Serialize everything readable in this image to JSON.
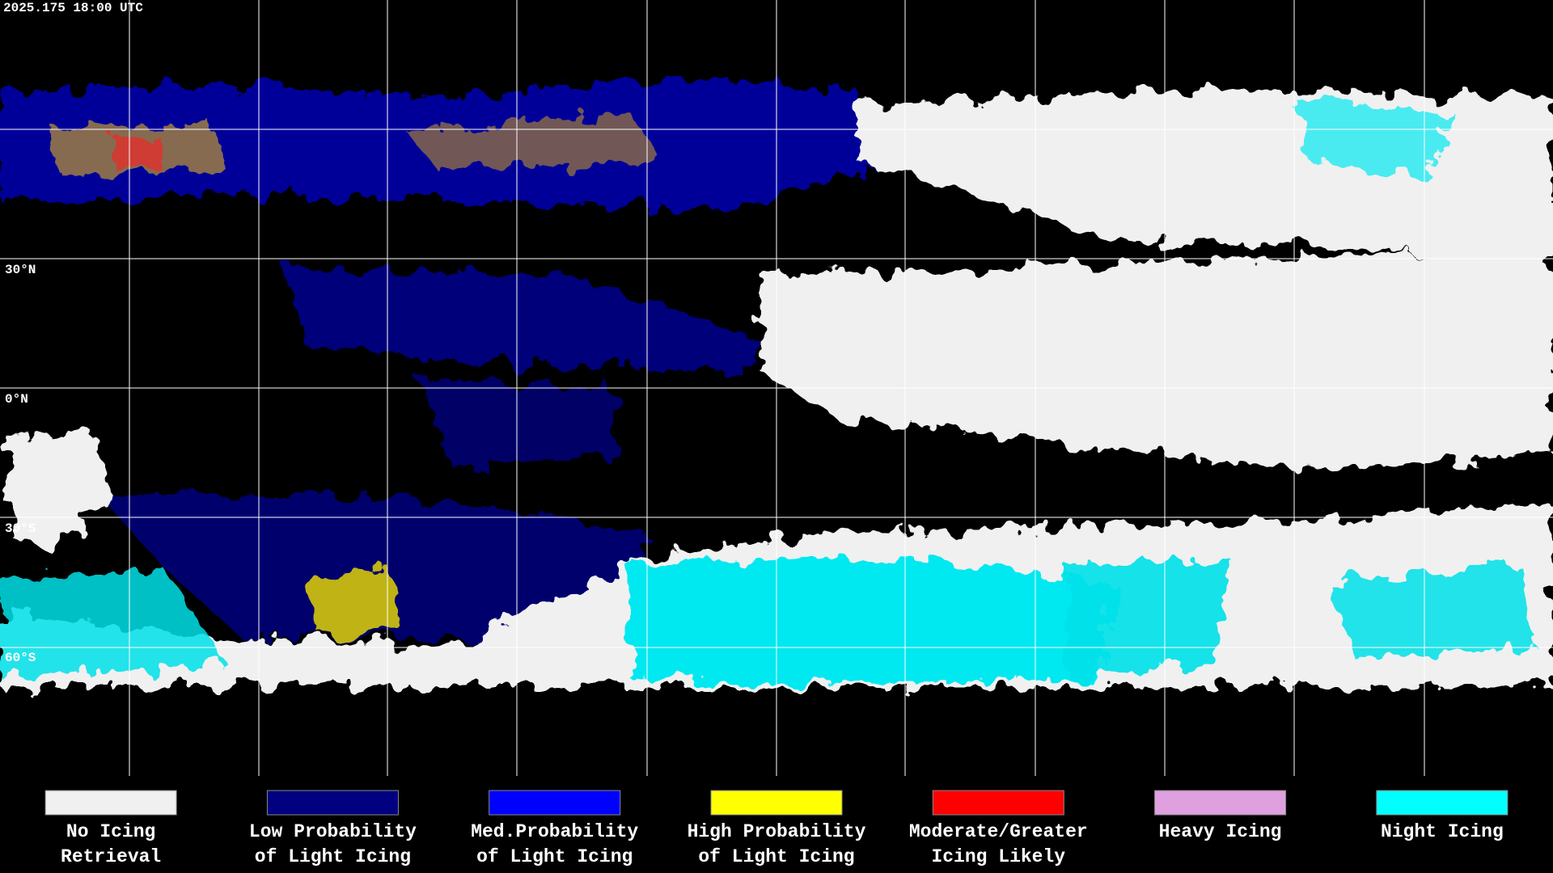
{
  "header": {
    "timestamp": "2025.175 18:00 UTC"
  },
  "map": {
    "latitude_labels": [
      "30°N",
      "0°N",
      "30°S",
      "60°S"
    ]
  },
  "legend": {
    "items": [
      {
        "label": [
          "No Icing",
          "Retrieval"
        ],
        "color": "#f0f0f0"
      },
      {
        "label": [
          "Low Probability",
          "of Light Icing"
        ],
        "color": "#000080"
      },
      {
        "label": [
          "Med.Probability",
          "of Light Icing"
        ],
        "color": "#0000ff"
      },
      {
        "label": [
          "High Probability",
          "of Light Icing"
        ],
        "color": "#ffff00"
      },
      {
        "label": [
          "Moderate/Greater",
          "Icing Likely"
        ],
        "color": "#ff0000"
      },
      {
        "label": [
          "Heavy Icing"
        ],
        "color": "#e0a0e0"
      },
      {
        "label": [
          "Night Icing"
        ],
        "color": "#00ffff"
      }
    ]
  }
}
